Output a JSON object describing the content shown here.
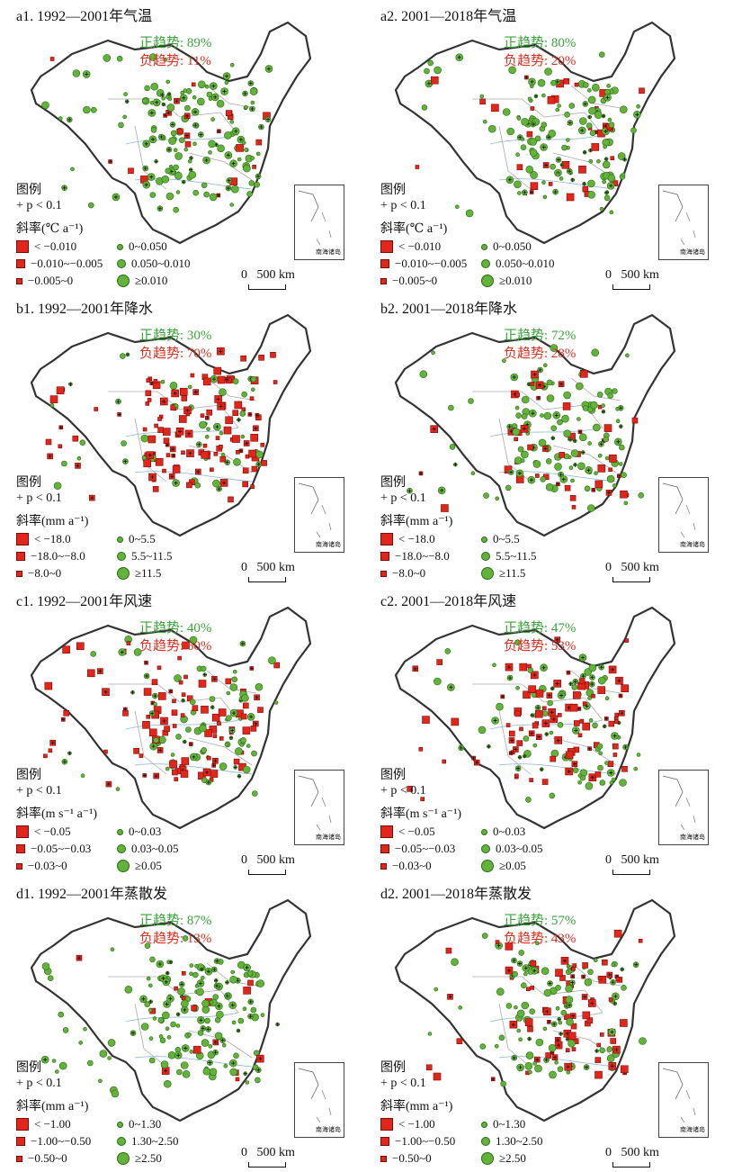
{
  "panels": [
    {
      "title": "a1. 1992—2001年气温",
      "pos": "正趋势: 89%",
      "neg": "负趋势: 11%",
      "slope_label": "斜率(℃ a⁻¹)",
      "legend": [
        "< −0.010",
        "−0.010~−0.005",
        "−0.005~0",
        "0~0.050",
        "0.050~0.010",
        "≥0.010"
      ],
      "pos_ratio": 0.89
    },
    {
      "title": "a2. 2001—2018年气温",
      "pos": "正趋势: 80%",
      "neg": "负趋势: 20%",
      "slope_label": "斜率(℃ a⁻¹)",
      "legend": [
        "< −0.010",
        "−0.010~−0.005",
        "−0.005~0",
        "0~0.050",
        "0.050~0.010",
        "≥0.010"
      ],
      "pos_ratio": 0.8
    },
    {
      "title": "b1. 1992—2001年降水",
      "pos": "正趋势: 30%",
      "neg": "负趋势: 70%",
      "slope_label": "斜率(mm a⁻¹)",
      "legend": [
        "< −18.0",
        "−18.0~−8.0",
        "−8.0~0",
        "0~5.5",
        "5.5~11.5",
        "≥11.5"
      ],
      "pos_ratio": 0.3
    },
    {
      "title": "b2. 2001—2018年降水",
      "pos": "正趋势: 72%",
      "neg": "负趋势: 28%",
      "slope_label": "斜率(mm a⁻¹)",
      "legend": [
        "< −18.0",
        "−18.0~−8.0",
        "−8.0~0",
        "0~5.5",
        "5.5~11.5",
        "≥11.5"
      ],
      "pos_ratio": 0.72
    },
    {
      "title": "c1. 1992—2001年风速",
      "pos": "正趋势: 40%",
      "neg": "负趋势: 60%",
      "slope_label": "斜率(m s⁻¹ a⁻¹)",
      "legend": [
        "< −0.05",
        "−0.05~−0.03",
        "−0.03~0",
        "0~0.03",
        "0.03~0.05",
        "≥0.05"
      ],
      "pos_ratio": 0.4
    },
    {
      "title": "c2. 2001—2018年风速",
      "pos": "正趋势: 47%",
      "neg": "负趋势: 53%",
      "slope_label": "斜率(m s⁻¹ a⁻¹)",
      "legend": [
        "< −0.05",
        "−0.05~−0.03",
        "−0.03~0",
        "0~0.03",
        "0.03~0.05",
        "≥0.05"
      ],
      "pos_ratio": 0.47
    },
    {
      "title": "d1. 1992—2001年蒸散发",
      "pos": "正趋势: 87%",
      "neg": "负趋势: 13%",
      "slope_label": "斜率(mm a⁻¹)",
      "legend": [
        "< −1.00",
        "−1.00~−0.50",
        "−0.50~0",
        "0~1.30",
        "1.30~2.50",
        "≥2.50"
      ],
      "pos_ratio": 0.87
    },
    {
      "title": "d2. 2001—2018年蒸散发",
      "pos": "正趋势: 57%",
      "neg": "负趋势: 43%",
      "slope_label": "斜率(mm a⁻¹)",
      "legend": [
        "< −1.00",
        "−1.00~−0.50",
        "−0.50~0",
        "0~1.30",
        "1.30~2.50",
        "≥2.50"
      ],
      "pos_ratio": 0.57
    }
  ],
  "common": {
    "legend_title": "图例",
    "sig_label": "+ p < 0.1",
    "scale_label": "0   500 km",
    "inset_label": "南海诸岛"
  },
  "colors": {
    "positive": "#63b33b",
    "negative": "#e3261c",
    "pos_text": "#3aa33a",
    "neg_text": "#d9301f"
  }
}
